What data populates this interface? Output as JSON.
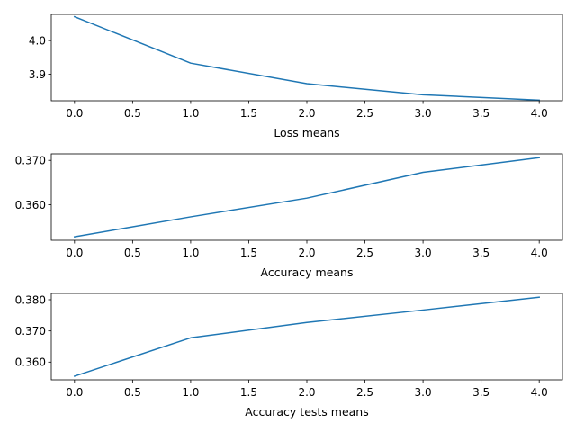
{
  "chart_data": [
    {
      "type": "line",
      "xlabel": "Loss means",
      "ylabel": "",
      "x": [
        0,
        1,
        2,
        3,
        4
      ],
      "xticks": [
        "0.0",
        "0.5",
        "1.0",
        "1.5",
        "2.0",
        "2.5",
        "3.0",
        "3.5",
        "4.0"
      ],
      "xtick_values": [
        0,
        0.5,
        1,
        1.5,
        2,
        2.5,
        3,
        3.5,
        4
      ],
      "xlim": [
        -0.2,
        4.2
      ],
      "ylim": [
        3.8213,
        4.0778
      ],
      "yticks": [
        "3.9",
        "4.0"
      ],
      "ytick_values": [
        3.9,
        4.0
      ],
      "series": [
        {
          "values": [
            4.071,
            3.933,
            3.872,
            3.839,
            3.823
          ]
        }
      ],
      "color": "#1f77b4",
      "grid": false,
      "legend": "none"
    },
    {
      "type": "line",
      "xlabel": "Accuracy means",
      "ylabel": "",
      "x": [
        0,
        1,
        2,
        3,
        4
      ],
      "xticks": [
        "0.0",
        "0.5",
        "1.0",
        "1.5",
        "2.0",
        "2.5",
        "3.0",
        "3.5",
        "4.0"
      ],
      "xtick_values": [
        0,
        0.5,
        1,
        1.5,
        2,
        2.5,
        3,
        3.5,
        4
      ],
      "xlim": [
        -0.2,
        4.2
      ],
      "ylim": [
        0.35202,
        0.37146
      ],
      "yticks": [
        "0.360",
        "0.370"
      ],
      "ytick_values": [
        0.36,
        0.37
      ],
      "series": [
        {
          "values": [
            0.3528,
            0.3573,
            0.3615,
            0.3673,
            0.3706
          ]
        }
      ],
      "color": "#1f77b4",
      "grid": false,
      "legend": "none"
    },
    {
      "type": "line",
      "xlabel": "Accuracy tests means",
      "ylabel": "",
      "x": [
        0,
        1,
        2,
        3,
        4
      ],
      "xticks": [
        "0.0",
        "0.5",
        "1.0",
        "1.5",
        "2.0",
        "2.5",
        "3.0",
        "3.5",
        "4.0"
      ],
      "xtick_values": [
        0,
        0.5,
        1,
        1.5,
        2,
        2.5,
        3,
        3.5,
        4
      ],
      "xlim": [
        -0.2,
        4.2
      ],
      "ylim": [
        0.35432,
        0.38202
      ],
      "yticks": [
        "0.360",
        "0.370",
        "0.380"
      ],
      "ytick_values": [
        0.36,
        0.37,
        0.38
      ],
      "series": [
        {
          "values": [
            0.3555,
            0.3678,
            0.3727,
            0.3767,
            0.3808
          ]
        }
      ],
      "color": "#1f77b4",
      "grid": false,
      "legend": "none"
    }
  ]
}
